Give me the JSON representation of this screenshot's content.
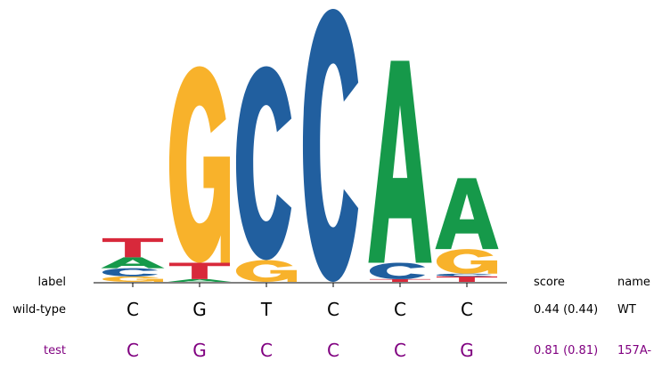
{
  "logo": {
    "letter_colors": {
      "A": "#16994a",
      "C": "#215f9f",
      "G": "#f8b22b",
      "T": "#d8293b"
    },
    "positions": [
      {
        "stack": [
          {
            "letter": "G",
            "h": 0.02
          },
          {
            "letter": "C",
            "h": 0.03
          },
          {
            "letter": "A",
            "h": 0.04
          },
          {
            "letter": "T",
            "h": 0.07
          }
        ]
      },
      {
        "stack": [
          {
            "letter": "A",
            "h": 0.01
          },
          {
            "letter": "T",
            "h": 0.06
          },
          {
            "letter": "G",
            "h": 0.72
          }
        ]
      },
      {
        "stack": [
          {
            "letter": "G",
            "h": 0.08
          },
          {
            "letter": "C",
            "h": 0.71
          }
        ]
      },
      {
        "stack": [
          {
            "letter": "C",
            "h": 1.0
          }
        ]
      },
      {
        "stack": [
          {
            "letter": "T",
            "h": 0.01
          },
          {
            "letter": "C",
            "h": 0.06
          },
          {
            "letter": "A",
            "h": 0.74
          }
        ]
      },
      {
        "stack": [
          {
            "letter": "T",
            "h": 0.02
          },
          {
            "letter": "C",
            "h": 0.01
          },
          {
            "letter": "G",
            "h": 0.09
          },
          {
            "letter": "A",
            "h": 0.26
          }
        ]
      }
    ]
  },
  "table": {
    "label_header": "label",
    "score_header": "score",
    "name_header": "name",
    "rows": [
      {
        "label": "wild-type",
        "sequence": [
          "C",
          "G",
          "T",
          "C",
          "C",
          "C"
        ],
        "score": "0.44 (0.44)",
        "name": "WT"
      },
      {
        "label": "test",
        "sequence": [
          "C",
          "G",
          "C",
          "C",
          "C",
          "G"
        ],
        "score": "0.81 (0.81)",
        "name": "157A-"
      }
    ]
  }
}
